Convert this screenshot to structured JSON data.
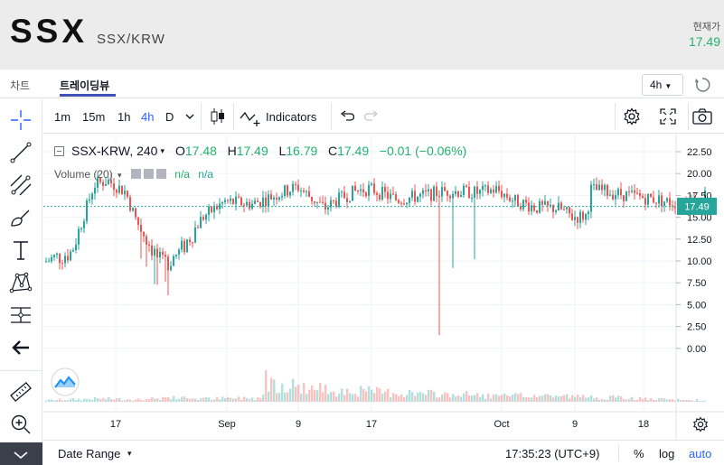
{
  "header": {
    "coin": "SSX",
    "pair": "SSX/KRW",
    "current_label": "현재가",
    "current_price": "17.49"
  },
  "tabs": [
    {
      "label": "차트"
    },
    {
      "label": "트레이딩뷰"
    }
  ],
  "interval_select": {
    "value": "4h"
  },
  "toolbar": {
    "intervals": [
      "1m",
      "15m",
      "1h",
      "4h",
      "D"
    ],
    "indicators_label": "Indicators"
  },
  "legend": {
    "symbol": "SSX-KRW, 240",
    "o_label": "O",
    "o": "17.48",
    "h_label": "H",
    "h": "17.49",
    "l_label": "L",
    "l": "16.79",
    "c_label": "C",
    "c": "17.49",
    "change": "−0.01 (−0.06%)"
  },
  "volume_legend": {
    "label": "Volume (20)",
    "val1": "n/a",
    "val2": "n/a"
  },
  "bottom": {
    "date_range": "Date Range",
    "time": "17:35:23 (UTC+9)",
    "percent": "%",
    "log": "log",
    "auto": "auto"
  },
  "colors": {
    "up": "#26a69a",
    "down": "#ef5350",
    "accent": "#2962ff",
    "price_green": "#23b26d"
  },
  "chart_data": {
    "type": "candlestick",
    "y_ticks": [
      "22.50",
      "20.00",
      "17.50",
      "15.00",
      "12.50",
      "10.00",
      "7.50",
      "5.00",
      "2.50",
      "0.00"
    ],
    "x_ticks": [
      "17",
      "Sep",
      "9",
      "17",
      "Oct",
      "9",
      "18"
    ],
    "last_price_label": "17.49",
    "ylim": [
      0,
      22.5
    ],
    "price_anchors": [
      [
        0,
        9.9
      ],
      [
        18,
        10.6
      ],
      [
        30,
        11
      ],
      [
        40,
        14
      ],
      [
        55,
        18.7
      ],
      [
        70,
        19.2
      ],
      [
        90,
        17.9
      ],
      [
        100,
        15
      ],
      [
        130,
        9.5
      ],
      [
        150,
        11
      ],
      [
        175,
        15
      ],
      [
        200,
        16.8
      ],
      [
        230,
        16.5
      ],
      [
        260,
        17.7
      ],
      [
        280,
        18.5
      ],
      [
        310,
        16
      ],
      [
        325,
        17
      ],
      [
        345,
        18
      ],
      [
        360,
        18.3
      ],
      [
        390,
        17
      ],
      [
        420,
        17.5
      ],
      [
        445,
        18
      ],
      [
        480,
        17.8
      ],
      [
        500,
        18.2
      ],
      [
        520,
        16.9
      ],
      [
        545,
        16.1
      ],
      [
        570,
        16
      ],
      [
        585,
        15
      ],
      [
        600,
        15.2
      ],
      [
        605,
        18.2
      ],
      [
        640,
        17.6
      ],
      [
        680,
        17
      ],
      [
        702,
        16.5
      ],
      [
        725,
        17
      ],
      [
        730,
        17.49
      ]
    ],
    "volume_anchors": [
      [
        0,
        0.2
      ],
      [
        30,
        0.3
      ],
      [
        60,
        0.4
      ],
      [
        100,
        0.3
      ],
      [
        140,
        0.5
      ],
      [
        180,
        0.4
      ],
      [
        240,
        0.5
      ],
      [
        245,
        2.9
      ],
      [
        260,
        2.3
      ],
      [
        300,
        1.6
      ],
      [
        380,
        1.2
      ],
      [
        420,
        1
      ],
      [
        470,
        0.9
      ],
      [
        500,
        0.7
      ],
      [
        560,
        0.8
      ],
      [
        600,
        0.6
      ],
      [
        640,
        0.5
      ],
      [
        680,
        0.3
      ],
      [
        730,
        0.2
      ]
    ]
  }
}
